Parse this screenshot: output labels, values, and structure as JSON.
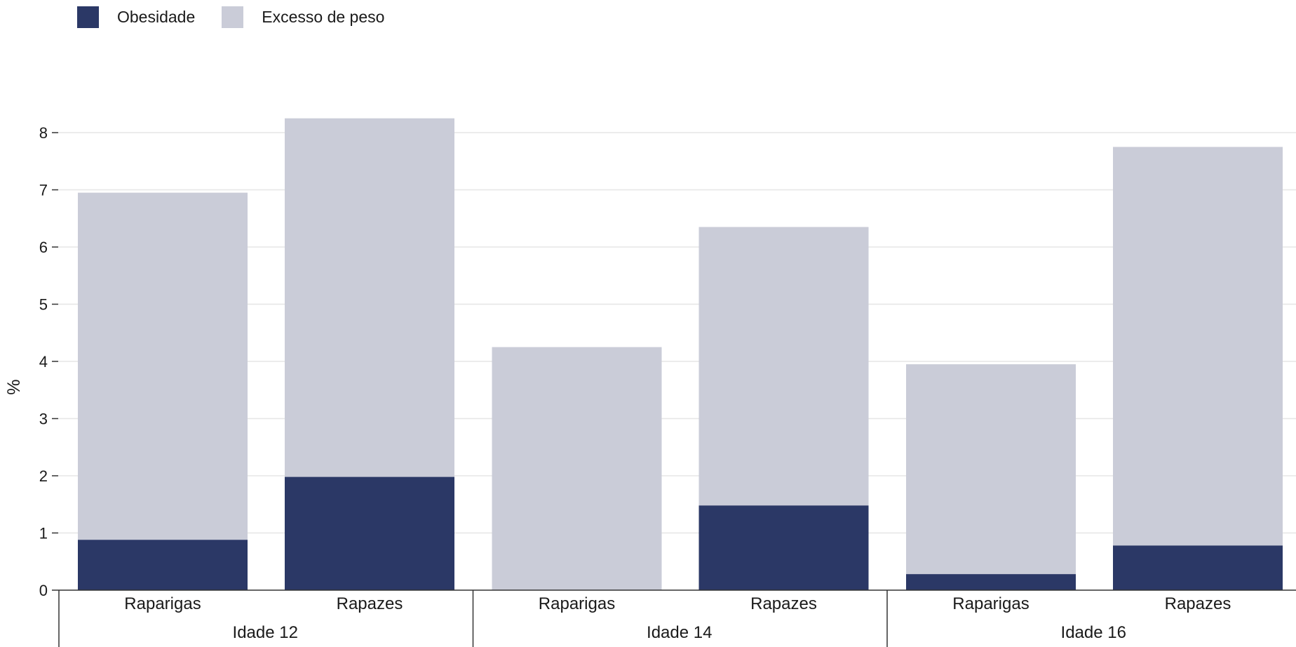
{
  "chart_data": {
    "type": "bar",
    "stacked": false,
    "overlapped": true,
    "groups": [
      {
        "label": "Idade 12",
        "categories": [
          "Raparigas",
          "Rapazes"
        ]
      },
      {
        "label": "Idade 14",
        "categories": [
          "Raparigas",
          "Rapazes"
        ]
      },
      {
        "label": "Idade 16",
        "categories": [
          "Raparigas",
          "Rapazes"
        ]
      }
    ],
    "series": [
      {
        "name": "Excesso de peso",
        "color": "#caccd8",
        "values": [
          6.95,
          8.25,
          4.25,
          6.35,
          3.95,
          7.75
        ]
      },
      {
        "name": "Obesidade",
        "color": "#2b3866",
        "values": [
          0.88,
          1.98,
          0.0,
          1.48,
          0.28,
          0.78
        ]
      }
    ],
    "ylabel": "%",
    "ylim": [
      0,
      8.5
    ],
    "yticks": [
      0,
      1,
      2,
      3,
      4,
      5,
      6,
      7,
      8
    ],
    "grid": true,
    "legend_position": "top-left"
  },
  "legend": [
    {
      "name": "Obesidade",
      "color": "#2b3866"
    },
    {
      "name": "Excesso de peso",
      "color": "#caccd8"
    }
  ]
}
